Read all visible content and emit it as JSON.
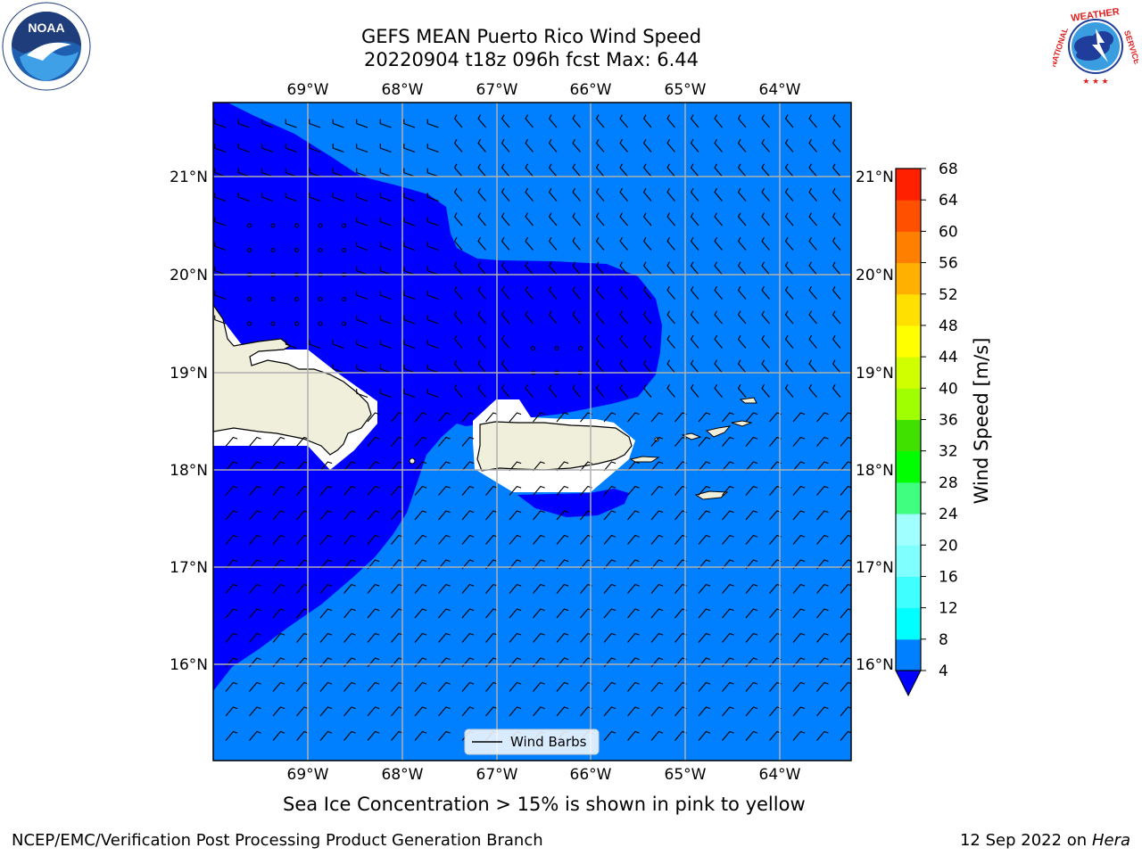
{
  "header": {
    "title_line1": "GEFS MEAN Puerto Rico Wind Speed",
    "title_line2": "20220904 t18z 096h fcst   Max: 6.44"
  },
  "map": {
    "lon_labels": [
      "69°W",
      "68°W",
      "67°W",
      "66°W",
      "65°W",
      "64°W"
    ],
    "lat_labels": [
      "21°N",
      "20°N",
      "19°N",
      "18°N",
      "17°N",
      "16°N"
    ],
    "legend_label": "Wind Barbs",
    "colors": {
      "ocean_fast": "#0080ff",
      "ocean_slow": "#0000ff",
      "land": "#efefdc",
      "gridline": "#b0b0b0"
    }
  },
  "colorbar": {
    "label": "Wind Speed [m/s]",
    "ticks": [
      "4",
      "8",
      "12",
      "16",
      "20",
      "24",
      "28",
      "32",
      "36",
      "40",
      "44",
      "48",
      "52",
      "56",
      "60",
      "64",
      "68"
    ],
    "colors": [
      "#0080ff",
      "#00ffff",
      "#40ffff",
      "#80ffff",
      "#a0ffff",
      "#40ff80",
      "#00ff00",
      "#40e000",
      "#a0ff00",
      "#d0ff00",
      "#ffff00",
      "#ffe000",
      "#ffb000",
      "#ff8000",
      "#ff5000",
      "#ff2000",
      "#ff0000"
    ],
    "extend_color": "#0000ff"
  },
  "footer": {
    "caption": "Sea Ice Concentration > 15% is shown in pink to yellow",
    "credit": "NCEP/EMC/Verification Post Processing Product Generation Branch",
    "date": "12 Sep 2022 on",
    "host": "Hera"
  },
  "logos": {
    "left": "noaa-logo",
    "right_text": "NATIONAL WEATHER SERVICE"
  }
}
